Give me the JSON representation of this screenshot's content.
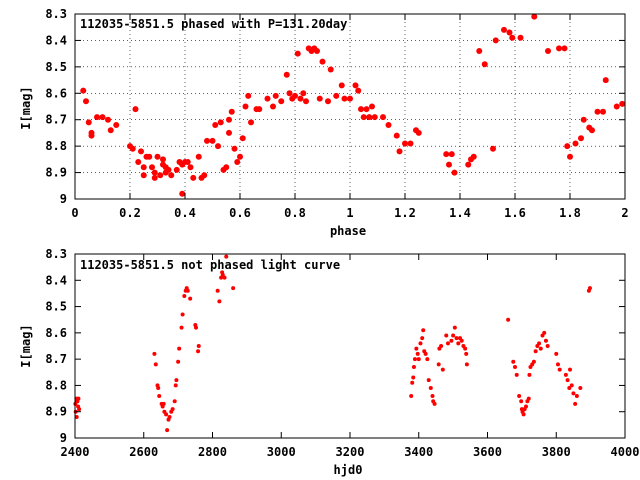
{
  "chart_data": [
    {
      "type": "scatter",
      "title": "112035-5851.5 phased with P=131.20day",
      "xlabel": "phase",
      "ylabel": "I[mag]",
      "xlim": [
        0,
        2
      ],
      "ylim": [
        9.0,
        8.3
      ],
      "y_inverted": true,
      "grid": true,
      "marker_color": "#ff0000",
      "xticks": [
        "0",
        "0.2",
        "0.4",
        "0.6",
        "0.8",
        "1",
        "1.2",
        "1.4",
        "1.6",
        "1.8",
        "2"
      ],
      "yticks": [
        "8.3",
        "8.4",
        "8.5",
        "8.6",
        "8.7",
        "8.8",
        "8.9",
        "9"
      ],
      "points": [
        [
          0.03,
          8.59
        ],
        [
          0.04,
          8.63
        ],
        [
          0.05,
          8.71
        ],
        [
          0.06,
          8.76
        ],
        [
          0.06,
          8.75
        ],
        [
          0.08,
          8.69
        ],
        [
          0.1,
          8.69
        ],
        [
          0.12,
          8.7
        ],
        [
          0.13,
          8.74
        ],
        [
          0.15,
          8.72
        ],
        [
          0.2,
          8.8
        ],
        [
          0.21,
          8.81
        ],
        [
          0.22,
          8.66
        ],
        [
          0.23,
          8.86
        ],
        [
          0.24,
          8.82
        ],
        [
          0.25,
          8.88
        ],
        [
          0.25,
          8.91
        ],
        [
          0.26,
          8.84
        ],
        [
          0.27,
          8.84
        ],
        [
          0.28,
          8.88
        ],
        [
          0.29,
          8.9
        ],
        [
          0.29,
          8.92
        ],
        [
          0.3,
          8.84
        ],
        [
          0.31,
          8.91
        ],
        [
          0.32,
          8.87
        ],
        [
          0.32,
          8.85
        ],
        [
          0.33,
          8.88
        ],
        [
          0.33,
          8.9
        ],
        [
          0.34,
          8.89
        ],
        [
          0.35,
          8.91
        ],
        [
          0.37,
          8.89
        ],
        [
          0.38,
          8.86
        ],
        [
          0.39,
          8.87
        ],
        [
          0.39,
          8.98
        ],
        [
          0.4,
          8.86
        ],
        [
          0.41,
          8.86
        ],
        [
          0.42,
          8.88
        ],
        [
          0.43,
          8.92
        ],
        [
          0.45,
          8.84
        ],
        [
          0.46,
          8.92
        ],
        [
          0.47,
          8.91
        ],
        [
          0.48,
          8.78
        ],
        [
          0.5,
          8.78
        ],
        [
          0.51,
          8.72
        ],
        [
          0.52,
          8.8
        ],
        [
          0.53,
          8.71
        ],
        [
          0.54,
          8.89
        ],
        [
          0.55,
          8.88
        ],
        [
          0.56,
          8.75
        ],
        [
          0.56,
          8.7
        ],
        [
          0.57,
          8.67
        ],
        [
          0.58,
          8.81
        ],
        [
          0.59,
          8.86
        ],
        [
          0.6,
          8.84
        ],
        [
          0.61,
          8.77
        ],
        [
          0.62,
          8.65
        ],
        [
          0.63,
          8.61
        ],
        [
          0.64,
          8.71
        ],
        [
          0.66,
          8.66
        ],
        [
          0.67,
          8.66
        ],
        [
          0.7,
          8.62
        ],
        [
          0.72,
          8.65
        ],
        [
          0.73,
          8.61
        ],
        [
          0.75,
          8.63
        ],
        [
          0.77,
          8.53
        ],
        [
          0.78,
          8.6
        ],
        [
          0.79,
          8.62
        ],
        [
          0.8,
          8.61
        ],
        [
          0.81,
          8.45
        ],
        [
          0.82,
          8.62
        ],
        [
          0.83,
          8.6
        ],
        [
          0.84,
          8.63
        ],
        [
          0.85,
          8.43
        ],
        [
          0.86,
          8.44
        ],
        [
          0.87,
          8.43
        ],
        [
          0.88,
          8.44
        ],
        [
          0.89,
          8.62
        ],
        [
          0.9,
          8.48
        ],
        [
          0.92,
          8.63
        ],
        [
          0.93,
          8.51
        ],
        [
          0.95,
          8.61
        ],
        [
          0.97,
          8.57
        ],
        [
          0.98,
          8.62
        ],
        [
          1.0,
          8.62
        ],
        [
          1.02,
          8.57
        ],
        [
          1.03,
          8.59
        ],
        [
          1.04,
          8.66
        ],
        [
          1.05,
          8.69
        ],
        [
          1.06,
          8.66
        ],
        [
          1.07,
          8.69
        ],
        [
          1.08,
          8.65
        ],
        [
          1.09,
          8.69
        ],
        [
          1.12,
          8.69
        ],
        [
          1.14,
          8.72
        ],
        [
          1.17,
          8.76
        ],
        [
          1.18,
          8.82
        ],
        [
          1.2,
          8.79
        ],
        [
          1.22,
          8.79
        ],
        [
          1.24,
          8.74
        ],
        [
          1.25,
          8.75
        ],
        [
          1.35,
          8.83
        ],
        [
          1.36,
          8.87
        ],
        [
          1.37,
          8.83
        ],
        [
          1.38,
          8.9
        ],
        [
          1.43,
          8.87
        ],
        [
          1.44,
          8.85
        ],
        [
          1.45,
          8.84
        ],
        [
          1.47,
          8.44
        ],
        [
          1.49,
          8.49
        ],
        [
          1.52,
          8.81
        ],
        [
          1.53,
          8.4
        ],
        [
          1.56,
          8.36
        ],
        [
          1.58,
          8.37
        ],
        [
          1.59,
          8.39
        ],
        [
          1.62,
          8.39
        ],
        [
          1.67,
          8.31
        ],
        [
          1.72,
          8.44
        ],
        [
          1.76,
          8.43
        ],
        [
          1.78,
          8.43
        ],
        [
          1.79,
          8.8
        ],
        [
          1.8,
          8.84
        ],
        [
          1.82,
          8.79
        ],
        [
          1.84,
          8.77
        ],
        [
          1.85,
          8.7
        ],
        [
          1.87,
          8.73
        ],
        [
          1.88,
          8.74
        ],
        [
          1.9,
          8.67
        ],
        [
          1.92,
          8.67
        ],
        [
          1.93,
          8.55
        ],
        [
          1.97,
          8.65
        ],
        [
          1.99,
          8.64
        ]
      ]
    },
    {
      "type": "scatter",
      "title": "112035-5851.5 not phased light curve",
      "xlabel": "hjd0",
      "ylabel": "I[mag]",
      "xlim": [
        2400,
        4000
      ],
      "ylim": [
        9.0,
        8.3
      ],
      "y_inverted": true,
      "grid": false,
      "marker_color": "#ff0000",
      "xticks": [
        "2400",
        "2600",
        "2800",
        "3000",
        "3200",
        "3400",
        "3600",
        "3800",
        "4000"
      ],
      "yticks": [
        "8.3",
        "8.4",
        "8.5",
        "8.6",
        "8.7",
        "8.8",
        "8.9",
        "9"
      ],
      "points": [
        [
          2401,
          8.87
        ],
        [
          2402,
          8.9
        ],
        [
          2404,
          8.85
        ],
        [
          2405,
          8.92
        ],
        [
          2407,
          8.86
        ],
        [
          2409,
          8.88
        ],
        [
          2410,
          8.85
        ],
        [
          2412,
          8.89
        ],
        [
          2631,
          8.68
        ],
        [
          2635,
          8.72
        ],
        [
          2640,
          8.8
        ],
        [
          2642,
          8.81
        ],
        [
          2645,
          8.84
        ],
        [
          2652,
          8.87
        ],
        [
          2655,
          8.88
        ],
        [
          2658,
          8.87
        ],
        [
          2660,
          8.9
        ],
        [
          2665,
          8.91
        ],
        [
          2668,
          8.97
        ],
        [
          2672,
          8.93
        ],
        [
          2675,
          8.92
        ],
        [
          2680,
          8.9
        ],
        [
          2684,
          8.89
        ],
        [
          2690,
          8.86
        ],
        [
          2693,
          8.8
        ],
        [
          2695,
          8.78
        ],
        [
          2700,
          8.71
        ],
        [
          2703,
          8.66
        ],
        [
          2710,
          8.58
        ],
        [
          2713,
          8.53
        ],
        [
          2718,
          8.46
        ],
        [
          2722,
          8.44
        ],
        [
          2725,
          8.43
        ],
        [
          2728,
          8.44
        ],
        [
          2735,
          8.47
        ],
        [
          2750,
          8.57
        ],
        [
          2752,
          8.58
        ],
        [
          2758,
          8.67
        ],
        [
          2760,
          8.65
        ],
        [
          2815,
          8.44
        ],
        [
          2820,
          8.48
        ],
        [
          2825,
          8.39
        ],
        [
          2828,
          8.37
        ],
        [
          2830,
          8.38
        ],
        [
          2835,
          8.39
        ],
        [
          2840,
          8.31
        ],
        [
          2860,
          8.43
        ],
        [
          3378,
          8.84
        ],
        [
          3381,
          8.79
        ],
        [
          3384,
          8.77
        ],
        [
          3386,
          8.73
        ],
        [
          3389,
          8.7
        ],
        [
          3393,
          8.66
        ],
        [
          3397,
          8.68
        ],
        [
          3400,
          8.7
        ],
        [
          3405,
          8.64
        ],
        [
          3410,
          8.62
        ],
        [
          3413,
          8.59
        ],
        [
          3416,
          8.67
        ],
        [
          3420,
          8.68
        ],
        [
          3425,
          8.7
        ],
        [
          3429,
          8.78
        ],
        [
          3435,
          8.81
        ],
        [
          3440,
          8.84
        ],
        [
          3442,
          8.86
        ],
        [
          3446,
          8.87
        ],
        [
          3458,
          8.72
        ],
        [
          3460,
          8.66
        ],
        [
          3465,
          8.65
        ],
        [
          3470,
          8.74
        ],
        [
          3480,
          8.61
        ],
        [
          3485,
          8.64
        ],
        [
          3495,
          8.63
        ],
        [
          3500,
          8.61
        ],
        [
          3505,
          8.58
        ],
        [
          3510,
          8.62
        ],
        [
          3515,
          8.64
        ],
        [
          3520,
          8.62
        ],
        [
          3525,
          8.63
        ],
        [
          3530,
          8.65
        ],
        [
          3535,
          8.66
        ],
        [
          3538,
          8.68
        ],
        [
          3540,
          8.72
        ],
        [
          3660,
          8.55
        ],
        [
          3675,
          8.71
        ],
        [
          3680,
          8.73
        ],
        [
          3685,
          8.76
        ],
        [
          3692,
          8.84
        ],
        [
          3698,
          8.86
        ],
        [
          3700,
          8.89
        ],
        [
          3702,
          8.9
        ],
        [
          3705,
          8.91
        ],
        [
          3708,
          8.89
        ],
        [
          3712,
          8.88
        ],
        [
          3716,
          8.86
        ],
        [
          3720,
          8.85
        ],
        [
          3722,
          8.76
        ],
        [
          3725,
          8.73
        ],
        [
          3730,
          8.72
        ],
        [
          3735,
          8.71
        ],
        [
          3740,
          8.67
        ],
        [
          3745,
          8.65
        ],
        [
          3750,
          8.64
        ],
        [
          3755,
          8.66
        ],
        [
          3760,
          8.61
        ],
        [
          3765,
          8.6
        ],
        [
          3770,
          8.63
        ],
        [
          3775,
          8.65
        ],
        [
          3800,
          8.68
        ],
        [
          3805,
          8.72
        ],
        [
          3810,
          8.74
        ],
        [
          3828,
          8.76
        ],
        [
          3833,
          8.78
        ],
        [
          3838,
          8.81
        ],
        [
          3840,
          8.74
        ],
        [
          3845,
          8.8
        ],
        [
          3850,
          8.83
        ],
        [
          3855,
          8.87
        ],
        [
          3860,
          8.84
        ],
        [
          3870,
          8.81
        ],
        [
          3895,
          8.44
        ],
        [
          3898,
          8.43
        ]
      ]
    }
  ]
}
